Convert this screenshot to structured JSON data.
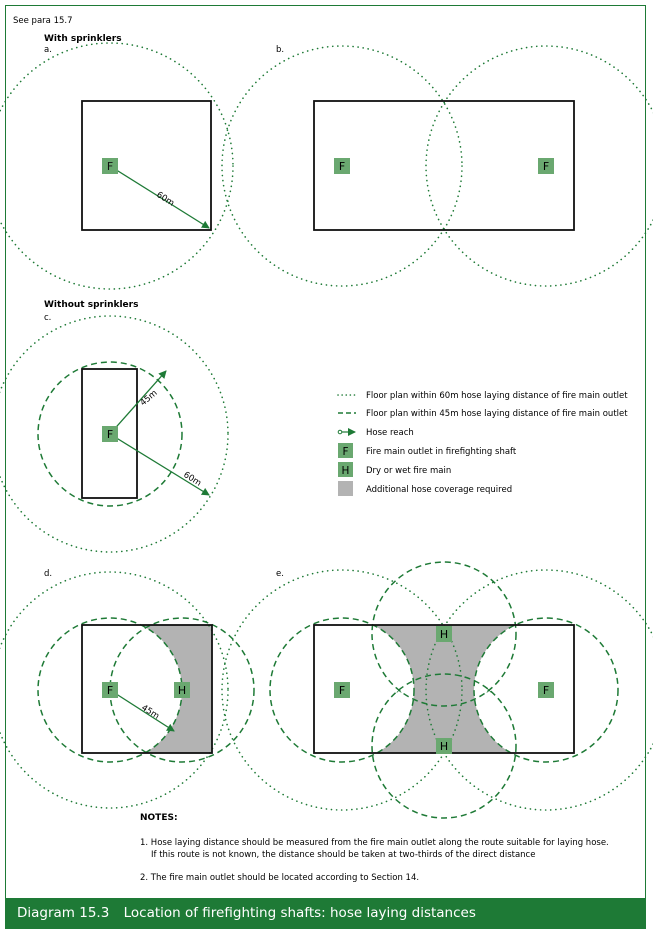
{
  "ref_note": "See para 15.7",
  "sections": {
    "with_sprinklers": "With sprinklers",
    "without_sprinklers": "Without sprinklers"
  },
  "panels": {
    "a": "a.",
    "b": "b.",
    "c": "c.",
    "d": "d.",
    "e": "e."
  },
  "markers": {
    "outlet": "F",
    "main": "H"
  },
  "distances": {
    "d60": "60m",
    "d45": "45m"
  },
  "legend": [
    {
      "symbol": "dotted-line",
      "label": "Floor plan within 60m hose laying distance of fire main outlet"
    },
    {
      "symbol": "dashed-line",
      "label": "Floor plan within 45m hose laying distance of fire main outlet"
    },
    {
      "symbol": "arrow",
      "label": "Hose reach"
    },
    {
      "symbol": "F-box",
      "label": "Fire main outlet in firefighting shaft"
    },
    {
      "symbol": "H-box",
      "label": "Dry or wet fire main"
    },
    {
      "symbol": "grey-box",
      "label": "Additional hose coverage required"
    }
  ],
  "notes": {
    "title": "NOTES:",
    "note1_line1": "1.  Hose laying distance should be measured from the fire main outlet along the route suitable for laying hose.",
    "note1_line2": "If this route is not known, the distance should be taken at two-thirds of the direct distance",
    "note2": "2.  The fire main outlet should be located according to Section 14."
  },
  "caption": {
    "number": "Diagram 15.3",
    "title": "Location of firefighting shafts: hose laying distances"
  },
  "colors": {
    "green": "#1e7a36",
    "box_green": "#6aa870",
    "grey": "#b3b3b3",
    "outline": "#111111"
  }
}
